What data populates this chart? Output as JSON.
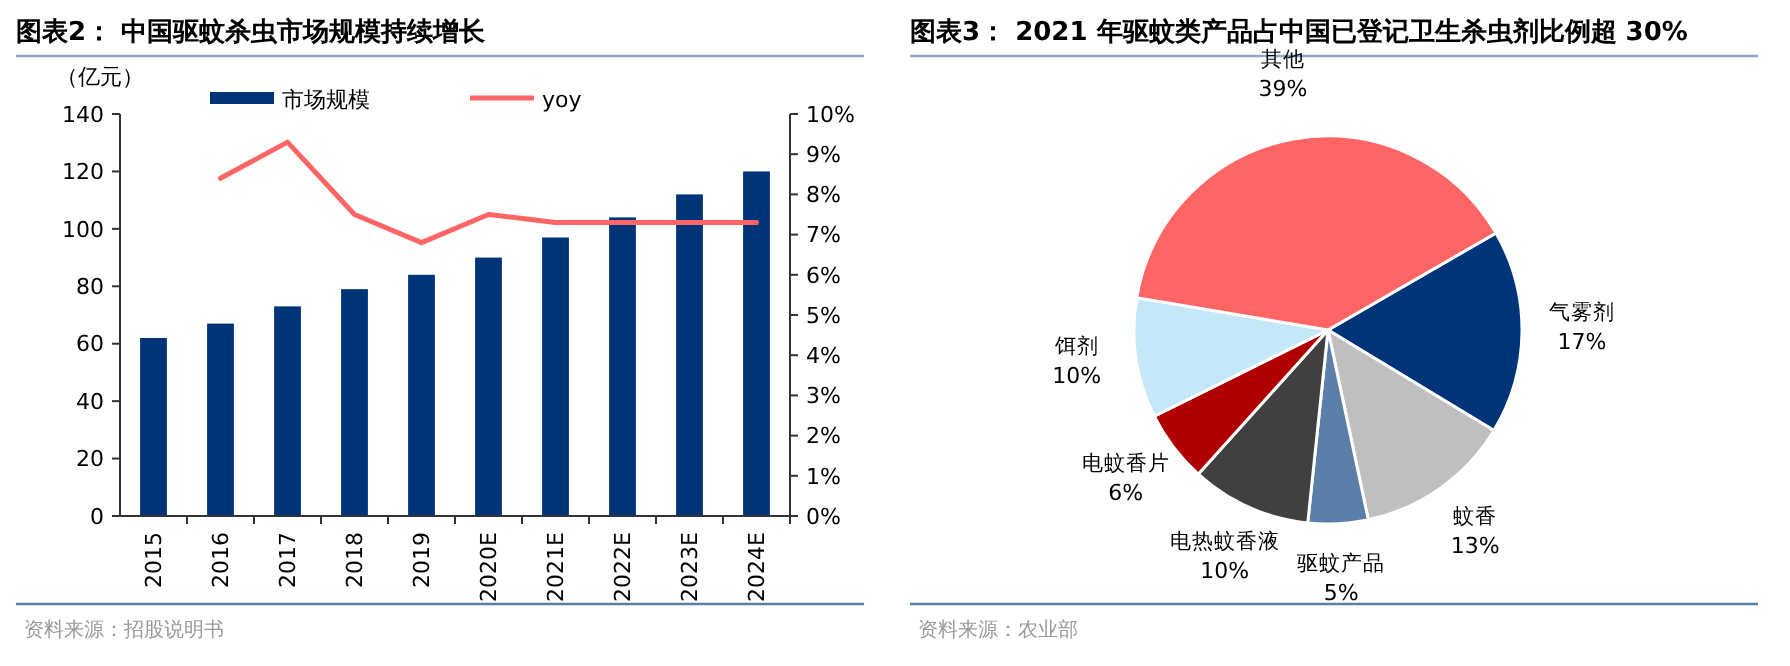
{
  "chart_data": [
    {
      "type": "bar",
      "title": "图表2： 中国驱蚊杀虫市场规模持续增长",
      "ylabel": "（亿元）",
      "categories": [
        "2015",
        "2016",
        "2017",
        "2018",
        "2019",
        "2020E",
        "2021E",
        "2022E",
        "2023E",
        "2024E"
      ],
      "series": [
        {
          "name": "市场规模",
          "type": "bar",
          "color": "#003478",
          "values": [
            62,
            67,
            73,
            79,
            84,
            90,
            97,
            104,
            112,
            120
          ]
        },
        {
          "name": "yoy",
          "type": "line",
          "axis": "y2",
          "color": "#ff6565",
          "values": [
            null,
            8.4,
            9.3,
            7.5,
            6.8,
            7.5,
            7.3,
            7.3,
            7.3,
            7.3
          ]
        }
      ],
      "ylim": [
        0,
        140
      ],
      "yticks": [
        0,
        20,
        40,
        60,
        80,
        100,
        120,
        140
      ],
      "y2lim": [
        0,
        10
      ],
      "y2ticks": [
        {
          "value": 0,
          "label": "0%"
        },
        {
          "value": 1,
          "label": "1%"
        },
        {
          "value": 2,
          "label": "2%"
        },
        {
          "value": 3,
          "label": "3%"
        },
        {
          "value": 4,
          "label": "4%"
        },
        {
          "value": 5,
          "label": "5%"
        },
        {
          "value": 6,
          "label": "6%"
        },
        {
          "value": 7,
          "label": "7%"
        },
        {
          "value": 8,
          "label": "8%"
        },
        {
          "value": 9,
          "label": "9%"
        },
        {
          "value": 10,
          "label": "10%"
        }
      ],
      "legend": "top",
      "grid": false,
      "annotations": [
        "资料来源：招股说明书"
      ]
    },
    {
      "type": "pie",
      "title": "图表3： 2021 年驱蚊类产品占中国已登记卫生杀虫剂比例超 30%",
      "categories": [
        "气雾剂",
        "蚊香",
        "驱蚊产品",
        "电热蚊香液",
        "电蚊香片",
        "饵剂",
        "其他"
      ],
      "values": [
        17,
        13,
        5,
        10,
        6,
        10,
        39
      ],
      "colors": [
        "#003478",
        "#bfbfbf",
        "#5b7fa8",
        "#404040",
        "#b00000",
        "#c5e8f8",
        "#ff6565"
      ],
      "value_labels": [
        "17%",
        "13%",
        "5%",
        "10%",
        "6%",
        "10%",
        "39%"
      ],
      "annotations": [
        "资料来源：农业部"
      ]
    }
  ]
}
